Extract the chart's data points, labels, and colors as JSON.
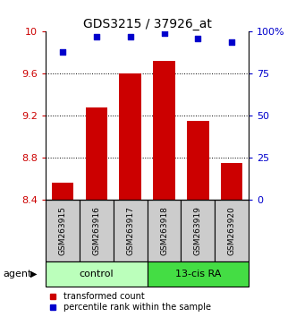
{
  "title": "GDS3215 / 37926_at",
  "samples": [
    "GSM263915",
    "GSM263916",
    "GSM263917",
    "GSM263918",
    "GSM263919",
    "GSM263920"
  ],
  "bar_values": [
    8.56,
    9.28,
    9.6,
    9.72,
    9.15,
    8.75
  ],
  "percentile_values": [
    88,
    97,
    97,
    99,
    96,
    94
  ],
  "ylim_left": [
    8.4,
    10.0
  ],
  "ylim_right": [
    0,
    100
  ],
  "yticks_left": [
    8.4,
    8.8,
    9.2,
    9.6,
    10.0
  ],
  "ytick_labels_left": [
    "8.4",
    "8.8",
    "9.2",
    "9.6",
    "10"
  ],
  "yticks_right": [
    0,
    25,
    50,
    75,
    100
  ],
  "ytick_labels_right": [
    "0",
    "25",
    "50",
    "75",
    "100%"
  ],
  "bar_color": "#cc0000",
  "dot_color": "#0000cc",
  "bar_width": 0.65,
  "groups": [
    {
      "label": "control",
      "indices": [
        0,
        1,
        2
      ],
      "color": "#bbffbb"
    },
    {
      "label": "13-cis RA",
      "indices": [
        3,
        4,
        5
      ],
      "color": "#44dd44"
    }
  ],
  "agent_label": "agent",
  "legend_items": [
    {
      "color": "#cc0000",
      "label": "transformed count"
    },
    {
      "color": "#0000cc",
      "label": "percentile rank within the sample"
    }
  ],
  "title_fontsize": 10,
  "axis_label_color_left": "#cc0000",
  "axis_label_color_right": "#0000cc",
  "sample_box_color": "#cccccc",
  "grid_dotted_at": [
    8.8,
    9.2,
    9.6
  ]
}
